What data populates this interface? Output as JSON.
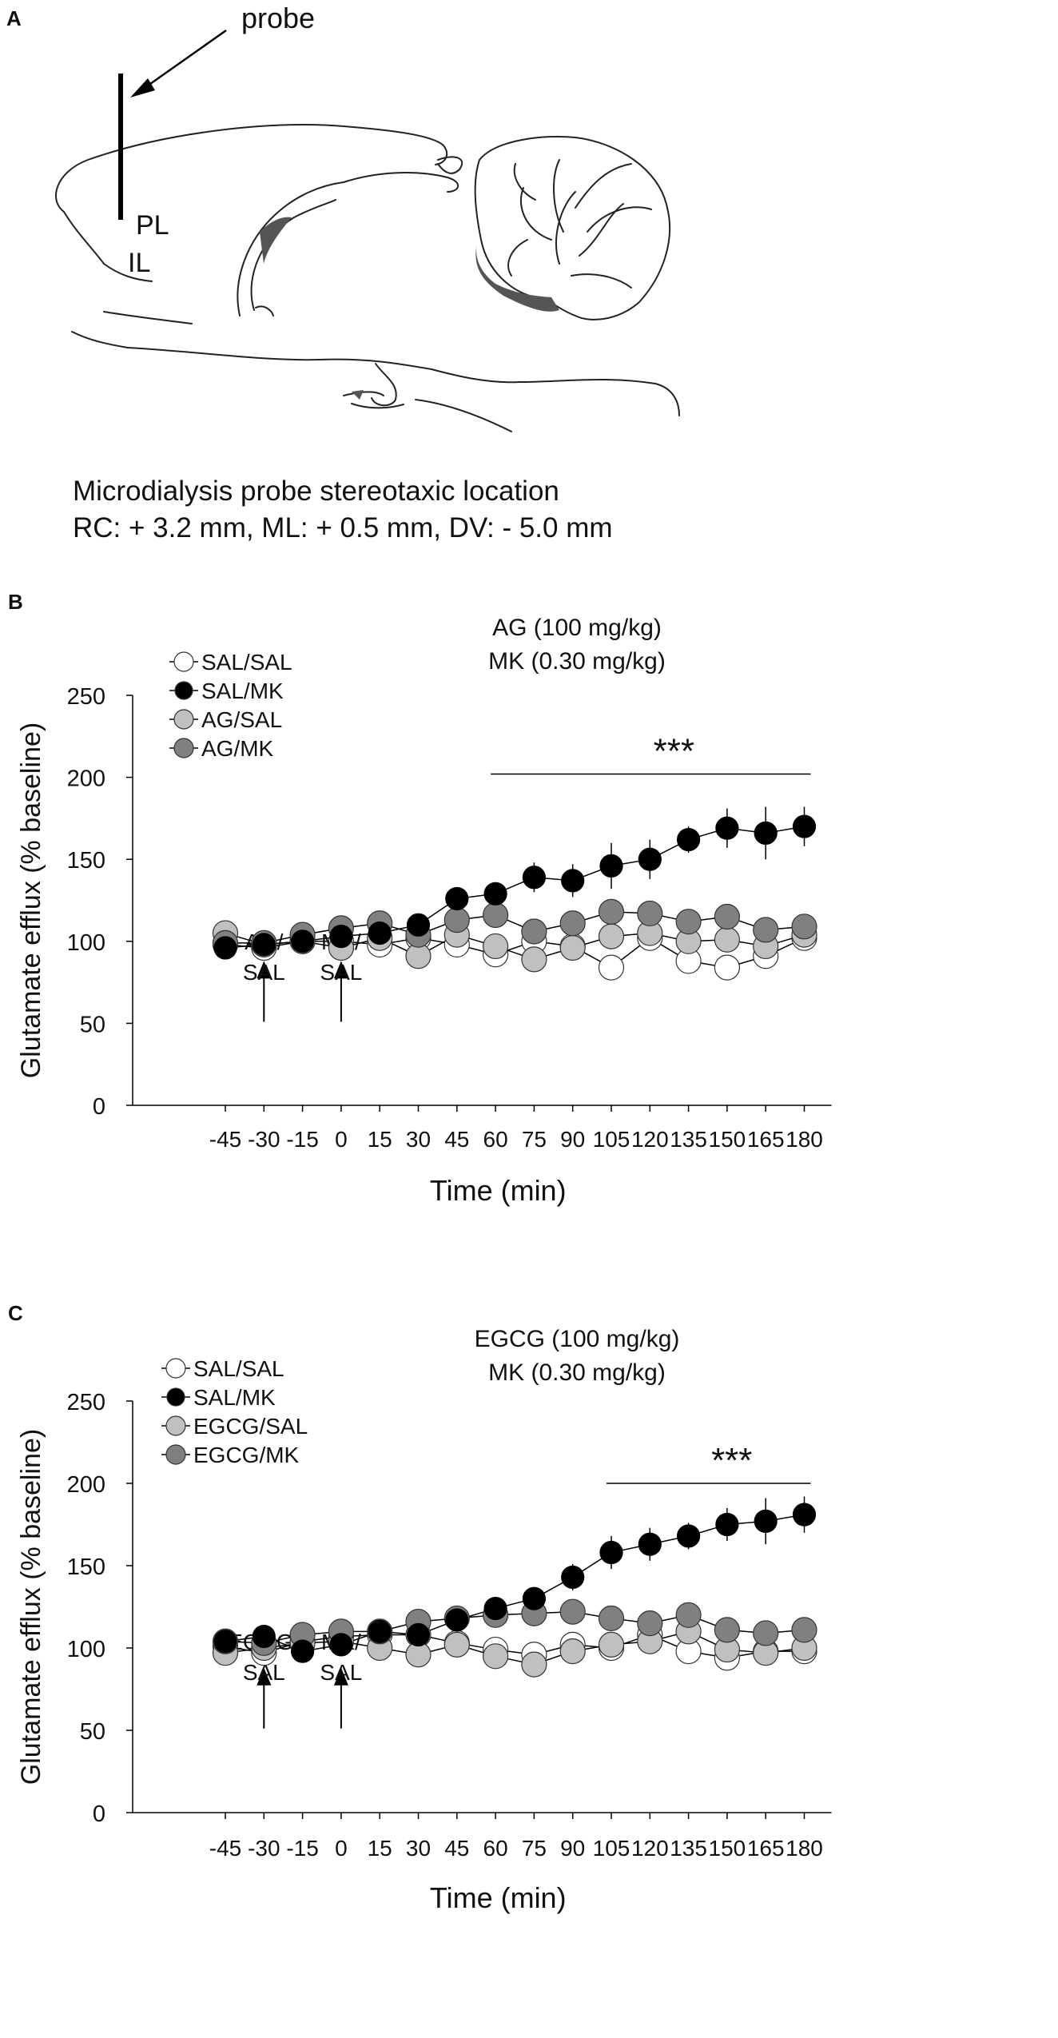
{
  "panelA": {
    "letter": "A",
    "probe_label": "probe",
    "region_pl": "PL",
    "region_il": "IL",
    "caption_line1": "Microdialysis probe stereotaxic location",
    "caption_line2": "RC: + 3.2 mm, ML: + 0.5 mm, DV: - 5.0 mm"
  },
  "chart_data": [
    {
      "letter": "B",
      "type": "line",
      "title_line1": "AG (100 mg/kg)",
      "title_line2": "MK (0.30 mg/kg)",
      "xlabel": "Time (min)",
      "ylabel": "Glutamate efflux (% baseline)",
      "ylim": [
        0,
        250
      ],
      "yticks": [
        0,
        50,
        100,
        150,
        200,
        250
      ],
      "categories": [
        "-45",
        "-30",
        "-15",
        "0",
        "15",
        "30",
        "45",
        "60",
        "75",
        "90",
        "105",
        "120",
        "135",
        "150",
        "165",
        "180"
      ],
      "series": [
        {
          "name": "SAL/SAL",
          "color": "#ffffff",
          "values": [
            98,
            96,
            100,
            100,
            98,
            102,
            98,
            92,
            100,
            97,
            84,
            102,
            88,
            84,
            91,
            102
          ]
        },
        {
          "name": "SAL/MK",
          "color": "#000000",
          "values": [
            96,
            98,
            100,
            103,
            105,
            110,
            126,
            129,
            139,
            137,
            146,
            150,
            162,
            169,
            166,
            170
          ],
          "errors": [
            0,
            0,
            0,
            0,
            0,
            0,
            6,
            7,
            9,
            10,
            14,
            12,
            8,
            12,
            16,
            12
          ]
        },
        {
          "name": "AG/SAL",
          "color": "#c0c0c0",
          "values": [
            105,
            98,
            100,
            96,
            102,
            91,
            104,
            97,
            89,
            96,
            103,
            105,
            100,
            101,
            97,
            104
          ]
        },
        {
          "name": "AG/MK",
          "color": "#808080",
          "values": [
            99,
            99,
            104,
            108,
            111,
            104,
            113,
            116,
            106,
            111,
            118,
            117,
            112,
            115,
            107,
            109
          ]
        }
      ],
      "arrows": [
        {
          "category": "-30",
          "line1": "AG/",
          "line2": "SAL"
        },
        {
          "category": "0",
          "line1": "MK/",
          "line2": "SAL"
        }
      ],
      "significance": {
        "label": "***",
        "from": "60",
        "to": "180"
      }
    },
    {
      "letter": "C",
      "type": "line",
      "title_line1": "EGCG (100 mg/kg)",
      "title_line2": "MK (0.30 mg/kg)",
      "xlabel": "Time (min)",
      "ylabel": "Glutamate efflux (% baseline)",
      "ylim": [
        0,
        250
      ],
      "yticks": [
        0,
        50,
        100,
        150,
        200,
        250
      ],
      "categories": [
        "-45",
        "-30",
        "-15",
        "0",
        "15",
        "30",
        "45",
        "60",
        "75",
        "90",
        "105",
        "120",
        "135",
        "150",
        "165",
        "180"
      ],
      "series": [
        {
          "name": "SAL/SAL",
          "color": "#ffffff",
          "values": [
            101,
            97,
            104,
            107,
            108,
            108,
            103,
            99,
            96,
            102,
            100,
            108,
            98,
            94,
            98,
            98
          ]
        },
        {
          "name": "SAL/MK",
          "color": "#000000",
          "values": [
            104,
            107,
            98,
            102,
            110,
            108,
            117,
            124,
            130,
            143,
            158,
            163,
            168,
            175,
            177,
            181
          ],
          "errors": [
            0,
            0,
            0,
            0,
            0,
            0,
            0,
            5,
            6,
            8,
            10,
            10,
            8,
            10,
            14,
            11
          ]
        },
        {
          "name": "EGCG/SAL",
          "color": "#c0c0c0",
          "values": [
            97,
            100,
            103,
            104,
            100,
            96,
            102,
            95,
            90,
            98,
            102,
            104,
            110,
            99,
            97,
            100
          ]
        },
        {
          "name": "EGCG/MK",
          "color": "#808080",
          "values": [
            104,
            103,
            108,
            110,
            110,
            116,
            118,
            120,
            121,
            122,
            118,
            115,
            120,
            111,
            109,
            111
          ]
        }
      ],
      "arrows": [
        {
          "category": "-30",
          "line1": "EGCG/",
          "line2": "SAL"
        },
        {
          "category": "0",
          "line1": "MK/",
          "line2": "SAL"
        }
      ],
      "significance": {
        "label": "***",
        "from": "105",
        "to": "180"
      }
    }
  ]
}
